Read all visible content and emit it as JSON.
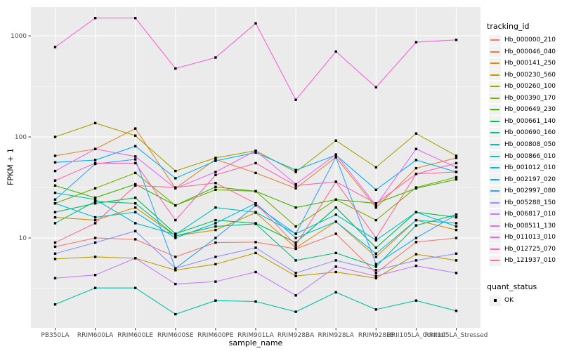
{
  "figure": {
    "background": "#FFFFFF",
    "panel_bg": "#EBEBEB",
    "grid_color": "#FFFFFF",
    "axis_text_color": "#4D4D4D",
    "tick_color": "#333333",
    "legend_key_bg": "#F2F2F2",
    "point_color": "#000000"
  },
  "chart_data": {
    "type": "line",
    "x_type": "categorical",
    "y_scale": "log10",
    "title": "",
    "xlabel": "sample_name",
    "ylabel": "FPKM + 1",
    "grid": true,
    "legend_position": "right",
    "ylim": [
      1.29,
      1930
    ],
    "y_ticks": [
      1000,
      100,
      10
    ],
    "y_minor_ticks": [
      316.23,
      31.62,
      3.162
    ],
    "categories": [
      "PB350LA",
      "RRIM600LA",
      "RRIM600LE",
      "RRIM600SE",
      "RRIM600PE",
      "RRIM901LA",
      "RRIM928BA",
      "RRIM928LA",
      "RRIM928LE",
      "RRII105LA_Control",
      "RRII105LA_Stressed"
    ],
    "legend": {
      "title": "tracking_id",
      "quant_status_title": "quant_status",
      "quant_status_value": "OK"
    },
    "series": [
      {
        "tracking_id": "Hb_000000_210",
        "color": "#F8766D",
        "quant_status": "OK",
        "values": [
          8.2,
          10,
          9.7,
          6.5,
          9,
          9.1,
          7.8,
          11,
          4.5,
          9.1,
          10
        ]
      },
      {
        "tracking_id": "Hb_000046_040",
        "color": "#EA8331",
        "quant_status": "OK",
        "values": [
          65,
          76,
          121,
          31,
          60,
          44,
          31,
          63,
          20,
          49,
          62
        ]
      },
      {
        "tracking_id": "Hb_000141_250",
        "color": "#D89000",
        "quant_status": "OK",
        "values": [
          16,
          15,
          20,
          10.5,
          12,
          17.8,
          8,
          14.5,
          6.5,
          15,
          12
        ]
      },
      {
        "tracking_id": "Hb_000230_560",
        "color": "#C09B00",
        "quant_status": "OK",
        "values": [
          6.2,
          6.5,
          6.3,
          4.8,
          5.5,
          7.1,
          4.2,
          4.6,
          4,
          6.9,
          6
        ]
      },
      {
        "tracking_id": "Hb_000260_100",
        "color": "#A3A500",
        "quant_status": "OK",
        "values": [
          100,
          137,
          103,
          46,
          62,
          73,
          45,
          92,
          50,
          108,
          65
        ]
      },
      {
        "tracking_id": "Hb_000390_170",
        "color": "#7CAE00",
        "quant_status": "OK",
        "values": [
          22,
          31,
          44,
          21,
          30,
          29,
          13,
          24,
          15,
          31.6,
          40
        ]
      },
      {
        "tracking_id": "Hb_000649_230",
        "color": "#39B600",
        "quant_status": "OK",
        "values": [
          33,
          25,
          34,
          21,
          32,
          29,
          20,
          24,
          22,
          31,
          38
        ]
      },
      {
        "tracking_id": "Hb_000661_140",
        "color": "#00BB4E",
        "quant_status": "OK",
        "values": [
          18,
          22,
          25,
          11,
          15,
          14,
          9,
          20,
          8,
          18,
          16
        ]
      },
      {
        "tracking_id": "Hb_000690_160",
        "color": "#00BF7D",
        "quant_status": "OK",
        "values": [
          14,
          23,
          22,
          10.5,
          13,
          13.8,
          6,
          7.1,
          5.2,
          13.3,
          17
        ]
      },
      {
        "tracking_id": "Hb_000808_050",
        "color": "#00C1A3",
        "quant_status": "OK",
        "values": [
          2.2,
          3.2,
          3.2,
          1.76,
          2.4,
          2.35,
          1.86,
          2.9,
          1.96,
          2.4,
          1.9
        ]
      },
      {
        "tracking_id": "Hb_000866_010",
        "color": "#00BFC4",
        "quant_status": "OK",
        "values": [
          28,
          24,
          14,
          10.8,
          20,
          18,
          11,
          17,
          9.5,
          18,
          13
        ]
      },
      {
        "tracking_id": "Hb_001012_010",
        "color": "#00BAE0",
        "quant_status": "OK",
        "values": [
          22,
          16,
          18,
          10,
          14,
          22,
          10,
          14.5,
          7,
          15,
          14
        ]
      },
      {
        "tracking_id": "Hb_002197_020",
        "color": "#00B0F6",
        "quant_status": "OK",
        "values": [
          56,
          59,
          81,
          39,
          58,
          70,
          47,
          66,
          30,
          59,
          45
        ]
      },
      {
        "tracking_id": "Hb_002997_080",
        "color": "#35A2FF",
        "quant_status": "OK",
        "values": [
          24,
          54,
          60,
          5,
          10,
          21,
          11,
          63,
          5.5,
          10,
          17
        ]
      },
      {
        "tracking_id": "Hb_005288_150",
        "color": "#9590FF",
        "quant_status": "OK",
        "values": [
          7,
          9,
          11.7,
          5,
          6.5,
          8,
          4.5,
          6,
          4.8,
          6,
          7
        ]
      },
      {
        "tracking_id": "Hb_006817_010",
        "color": "#C77CFF",
        "quant_status": "OK",
        "values": [
          4,
          4.3,
          6.3,
          3.5,
          3.7,
          4.6,
          2.7,
          5.2,
          4.2,
          5.3,
          4.5
        ]
      },
      {
        "tracking_id": "Hb_008511_130",
        "color": "#E76BF3",
        "quant_status": "OK",
        "values": [
          46,
          76,
          64,
          31,
          45,
          73,
          34,
          67,
          21,
          76,
          50
        ]
      },
      {
        "tracking_id": "Hb_011013_010",
        "color": "#FA62DB",
        "quant_status": "OK",
        "values": [
          775,
          1500,
          1500,
          475,
          610,
          1330,
          233,
          700,
          310,
          866,
          913
        ]
      },
      {
        "tracking_id": "Hb_012725_070",
        "color": "#FF62BC",
        "quant_status": "OK",
        "values": [
          37,
          55,
          55,
          15,
          42,
          55,
          33,
          36,
          22,
          43,
          55
        ]
      },
      {
        "tracking_id": "Hb_121937_010",
        "color": "#FF6A98",
        "quant_status": "OK",
        "values": [
          9,
          14,
          33,
          31.6,
          35,
          22,
          8.5,
          36,
          10,
          43,
          45
        ]
      }
    ]
  }
}
